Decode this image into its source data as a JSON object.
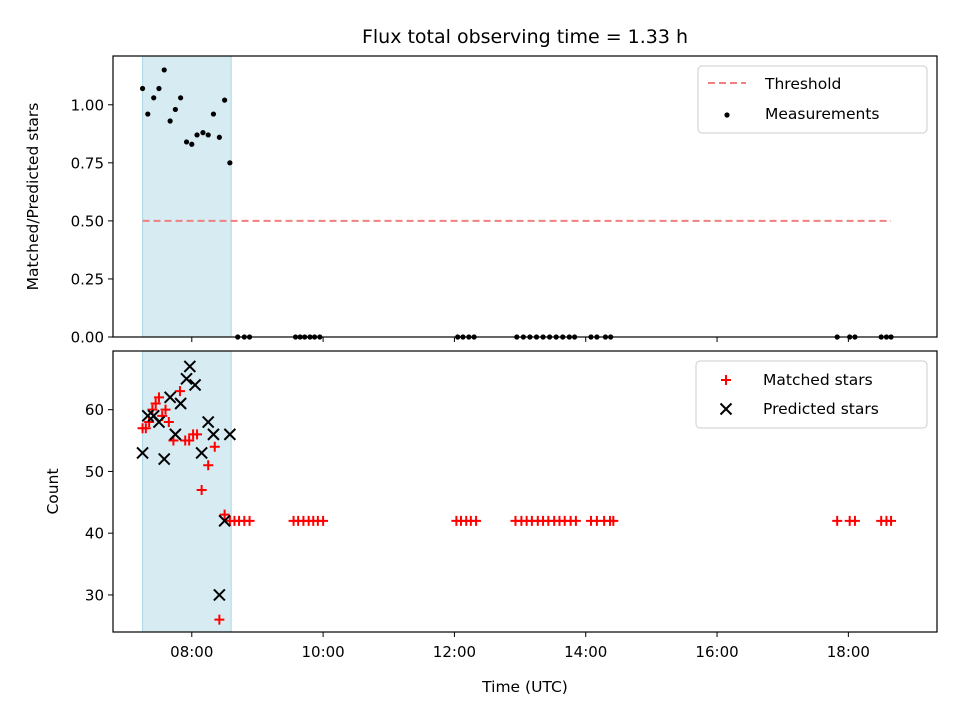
{
  "chart_data": {
    "type": "scatter",
    "title": "Flux total observing time = 1.33 h",
    "xlabel": "Time (UTC)",
    "xlim": [
      6.8,
      19.35
    ],
    "x_ticks": [
      {
        "value": 8,
        "label": "08:00"
      },
      {
        "value": 10,
        "label": "10:00"
      },
      {
        "value": 12,
        "label": "12:00"
      },
      {
        "value": 14,
        "label": "14:00"
      },
      {
        "value": 16,
        "label": "16:00"
      },
      {
        "value": 18,
        "label": "18:00"
      }
    ],
    "shaded_interval": [
      7.25,
      8.6
    ],
    "colors": {
      "shade": "#add8e6",
      "threshold": "#f08080",
      "measurement": "#000000",
      "matched": "#ff0000",
      "predicted": "#000000"
    },
    "panels": [
      {
        "ylabel": "Matched/Predicted stars",
        "ylim": [
          0,
          1.21
        ],
        "y_ticks": [
          {
            "value": 0,
            "label": "0.00"
          },
          {
            "value": 0.25,
            "label": "0.25"
          },
          {
            "value": 0.5,
            "label": "0.50"
          },
          {
            "value": 0.75,
            "label": "0.75"
          },
          {
            "value": 1.0,
            "label": "1.00"
          }
        ],
        "legend_position": "top-right",
        "threshold": {
          "name": "Threshold",
          "y": 0.5,
          "x_range": [
            7.25,
            18.65
          ]
        },
        "measurements": {
          "name": "Measurements",
          "points": [
            [
              7.25,
              1.07
            ],
            [
              7.33,
              0.96
            ],
            [
              7.42,
              1.03
            ],
            [
              7.5,
              1.07
            ],
            [
              7.58,
              1.15
            ],
            [
              7.67,
              0.93
            ],
            [
              7.75,
              0.98
            ],
            [
              7.83,
              1.03
            ],
            [
              7.92,
              0.84
            ],
            [
              8.0,
              0.83
            ],
            [
              8.08,
              0.87
            ],
            [
              8.17,
              0.88
            ],
            [
              8.25,
              0.87
            ],
            [
              8.33,
              0.96
            ],
            [
              8.42,
              0.86
            ],
            [
              8.5,
              1.02
            ],
            [
              8.58,
              0.75
            ],
            [
              8.7,
              0
            ],
            [
              8.8,
              0
            ],
            [
              8.88,
              0
            ],
            [
              9.58,
              0
            ],
            [
              9.65,
              0
            ],
            [
              9.72,
              0
            ],
            [
              9.8,
              0
            ],
            [
              9.87,
              0
            ],
            [
              9.95,
              0
            ],
            [
              12.05,
              0
            ],
            [
              12.13,
              0
            ],
            [
              12.22,
              0
            ],
            [
              12.3,
              0
            ],
            [
              12.95,
              0
            ],
            [
              13.05,
              0
            ],
            [
              13.15,
              0
            ],
            [
              13.25,
              0
            ],
            [
              13.35,
              0
            ],
            [
              13.45,
              0
            ],
            [
              13.55,
              0
            ],
            [
              13.65,
              0
            ],
            [
              13.75,
              0
            ],
            [
              13.83,
              0
            ],
            [
              14.08,
              0
            ],
            [
              14.17,
              0
            ],
            [
              14.3,
              0
            ],
            [
              14.38,
              0
            ],
            [
              17.83,
              0
            ],
            [
              18.02,
              0
            ],
            [
              18.1,
              0
            ],
            [
              18.5,
              0
            ],
            [
              18.58,
              0
            ],
            [
              18.65,
              0
            ]
          ]
        }
      },
      {
        "ylabel": "Count",
        "ylim": [
          24,
          69.5
        ],
        "y_ticks": [
          {
            "value": 30,
            "label": "30"
          },
          {
            "value": 40,
            "label": "40"
          },
          {
            "value": 50,
            "label": "50"
          },
          {
            "value": 60,
            "label": "60"
          }
        ],
        "legend_position": "top-right",
        "series": [
          {
            "name": "Matched stars",
            "marker": "plus",
            "points": [
              [
                7.25,
                57
              ],
              [
                7.3,
                57
              ],
              [
                7.35,
                58
              ],
              [
                7.4,
                60
              ],
              [
                7.45,
                61
              ],
              [
                7.5,
                62
              ],
              [
                7.55,
                59
              ],
              [
                7.6,
                60
              ],
              [
                7.65,
                58
              ],
              [
                7.72,
                55
              ],
              [
                7.82,
                63
              ],
              [
                7.9,
                55
              ],
              [
                7.96,
                55
              ],
              [
                8.02,
                56
              ],
              [
                8.08,
                56
              ],
              [
                8.15,
                47
              ],
              [
                8.25,
                51
              ],
              [
                8.35,
                54
              ],
              [
                8.42,
                26
              ],
              [
                8.5,
                43
              ],
              [
                8.58,
                42
              ],
              [
                8.65,
                42
              ],
              [
                8.72,
                42
              ],
              [
                8.8,
                42
              ],
              [
                8.88,
                42
              ],
              [
                9.55,
                42
              ],
              [
                9.62,
                42
              ],
              [
                9.7,
                42
              ],
              [
                9.78,
                42
              ],
              [
                9.85,
                42
              ],
              [
                9.92,
                42
              ],
              [
                10.0,
                42
              ],
              [
                12.03,
                42
              ],
              [
                12.1,
                42
              ],
              [
                12.18,
                42
              ],
              [
                12.25,
                42
              ],
              [
                12.33,
                42
              ],
              [
                12.93,
                42
              ],
              [
                13.02,
                42
              ],
              [
                13.1,
                42
              ],
              [
                13.18,
                42
              ],
              [
                13.27,
                42
              ],
              [
                13.35,
                42
              ],
              [
                13.43,
                42
              ],
              [
                13.52,
                42
              ],
              [
                13.6,
                42
              ],
              [
                13.68,
                42
              ],
              [
                13.77,
                42
              ],
              [
                13.85,
                42
              ],
              [
                14.08,
                42
              ],
              [
                14.17,
                42
              ],
              [
                14.28,
                42
              ],
              [
                14.37,
                42
              ],
              [
                14.42,
                42
              ],
              [
                17.83,
                42
              ],
              [
                18.02,
                42
              ],
              [
                18.1,
                42
              ],
              [
                18.5,
                42
              ],
              [
                18.58,
                42
              ],
              [
                18.65,
                42
              ]
            ]
          },
          {
            "name": "Predicted stars",
            "marker": "x",
            "points": [
              [
                7.25,
                53
              ],
              [
                7.33,
                59
              ],
              [
                7.42,
                59
              ],
              [
                7.5,
                58
              ],
              [
                7.58,
                52
              ],
              [
                7.67,
                62
              ],
              [
                7.75,
                56
              ],
              [
                7.83,
                61
              ],
              [
                7.92,
                65
              ],
              [
                7.97,
                67
              ],
              [
                8.05,
                64
              ],
              [
                8.15,
                53
              ],
              [
                8.25,
                58
              ],
              [
                8.33,
                56
              ],
              [
                8.42,
                30
              ],
              [
                8.5,
                42
              ],
              [
                8.58,
                56
              ]
            ]
          }
        ]
      }
    ]
  }
}
